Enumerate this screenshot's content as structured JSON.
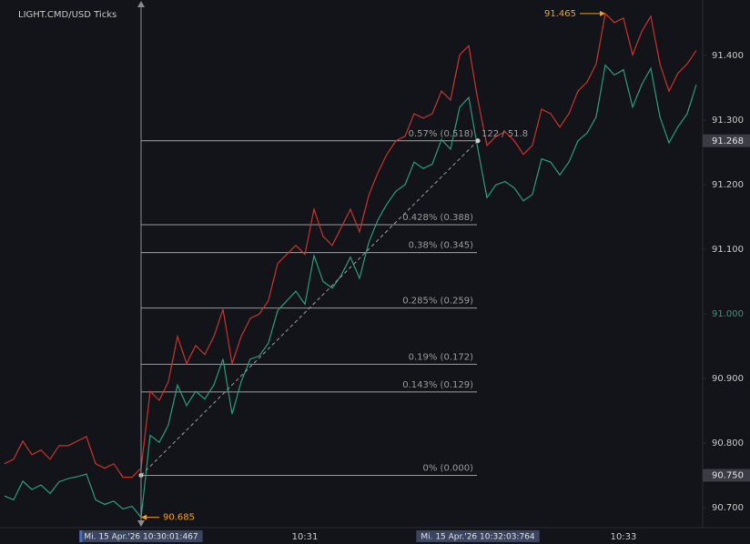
{
  "chart_data": {
    "type": "line",
    "title": "LIGHT.CMD/USD  Ticks",
    "categories": [
      null,
      null,
      null,
      null,
      null,
      null,
      null,
      null,
      null,
      null,
      null,
      null,
      null,
      null,
      null,
      "Mi. 15 Apr.'26  10:30:01:467",
      null,
      null,
      null,
      null,
      null,
      null,
      null,
      null,
      null,
      null,
      null,
      null,
      null,
      null,
      null,
      null,
      null,
      "10:31",
      null,
      null,
      null,
      null,
      null,
      null,
      null,
      null,
      null,
      null,
      null,
      null,
      null,
      null,
      null,
      null,
      null,
      null,
      "Mi. 15 Apr.'26  10:32:03:764",
      null,
      null,
      null,
      null,
      null,
      null,
      null,
      null,
      null,
      null,
      null,
      null,
      null,
      null,
      null,
      "10:33",
      null,
      null,
      null,
      null,
      null,
      null,
      null,
      null
    ],
    "series": [
      {
        "color": "#c8342c",
        "values": [
          90.768,
          90.775,
          90.803,
          90.782,
          90.789,
          90.775,
          90.796,
          90.796,
          90.803,
          90.81,
          90.768,
          90.761,
          90.768,
          90.747,
          90.747,
          90.761,
          90.88,
          90.866,
          90.895,
          90.965,
          90.923,
          90.951,
          90.937,
          90.965,
          91.007,
          90.923,
          90.965,
          90.993,
          91.0,
          91.021,
          91.078,
          91.092,
          91.106,
          91.092,
          91.162,
          91.12,
          91.106,
          91.134,
          91.162,
          91.127,
          91.183,
          91.218,
          91.247,
          91.268,
          91.275,
          91.31,
          91.303,
          91.31,
          91.345,
          91.331,
          91.401,
          91.415,
          91.331,
          91.261,
          91.275,
          91.282,
          91.268,
          91.247,
          91.261,
          91.317,
          91.31,
          91.289,
          91.31,
          91.345,
          91.359,
          91.387,
          91.465,
          91.451,
          91.458,
          91.401,
          91.437,
          91.461,
          91.387,
          91.345,
          91.373,
          91.387,
          91.408
        ]
      },
      {
        "color": "#2a9d78",
        "values": [
          90.718,
          90.712,
          90.741,
          90.728,
          90.735,
          90.722,
          90.74,
          90.745,
          90.748,
          90.752,
          90.712,
          90.705,
          90.71,
          90.698,
          90.702,
          90.685,
          90.812,
          90.801,
          90.828,
          90.89,
          90.858,
          90.88,
          90.868,
          90.89,
          90.93,
          90.845,
          90.895,
          90.93,
          90.935,
          90.955,
          91.005,
          91.02,
          91.035,
          91.015,
          91.09,
          91.05,
          91.04,
          91.06,
          91.088,
          91.055,
          91.11,
          91.145,
          91.17,
          91.19,
          91.2,
          91.235,
          91.225,
          91.232,
          91.27,
          91.255,
          91.32,
          91.335,
          91.255,
          91.18,
          91.2,
          91.205,
          91.195,
          91.175,
          91.185,
          91.24,
          91.235,
          91.215,
          91.235,
          91.268,
          91.28,
          91.305,
          91.385,
          91.37,
          91.378,
          91.32,
          91.355,
          91.38,
          91.305,
          91.265,
          91.29,
          91.31,
          91.355
        ]
      }
    ],
    "ylim": [
      90.669,
      91.486
    ],
    "yticks": [
      {
        "value": 91.4,
        "label": "91.400"
      },
      {
        "value": 91.3,
        "label": "91.300"
      },
      {
        "value": 91.2,
        "label": "91.200"
      },
      {
        "value": 91.1,
        "label": "91.100"
      },
      {
        "value": 91.0,
        "label": "91.000"
      },
      {
        "value": 90.9,
        "label": "90.900"
      },
      {
        "value": 90.8,
        "label": "90.800"
      },
      {
        "value": 90.7,
        "label": "90.700"
      }
    ],
    "highlight_tick": {
      "value": 91.0,
      "color": "#2a9d78"
    },
    "boxed_labels": [
      {
        "value": 91.268,
        "label": "91.268"
      },
      {
        "value": 90.75,
        "label": "90.750"
      }
    ],
    "levels": [
      {
        "value": 91.268,
        "label": "0.57% (0.518)"
      },
      {
        "value": 91.138,
        "label": "0.428% (0.388)"
      },
      {
        "value": 91.095,
        "label": "0.38% (0.345)"
      },
      {
        "value": 91.009,
        "label": "0.285% (0.259)"
      },
      {
        "value": 90.922,
        "label": "0.19% (0.172)"
      },
      {
        "value": 90.879,
        "label": "0.143% (0.129)"
      },
      {
        "value": 90.75,
        "label": "0% (0.000)"
      }
    ],
    "measure_label": "122 / 51.8",
    "annotations": [
      {
        "value": 91.465,
        "label": "91.465"
      },
      {
        "value": 90.685,
        "label": "90.685"
      }
    ]
  }
}
